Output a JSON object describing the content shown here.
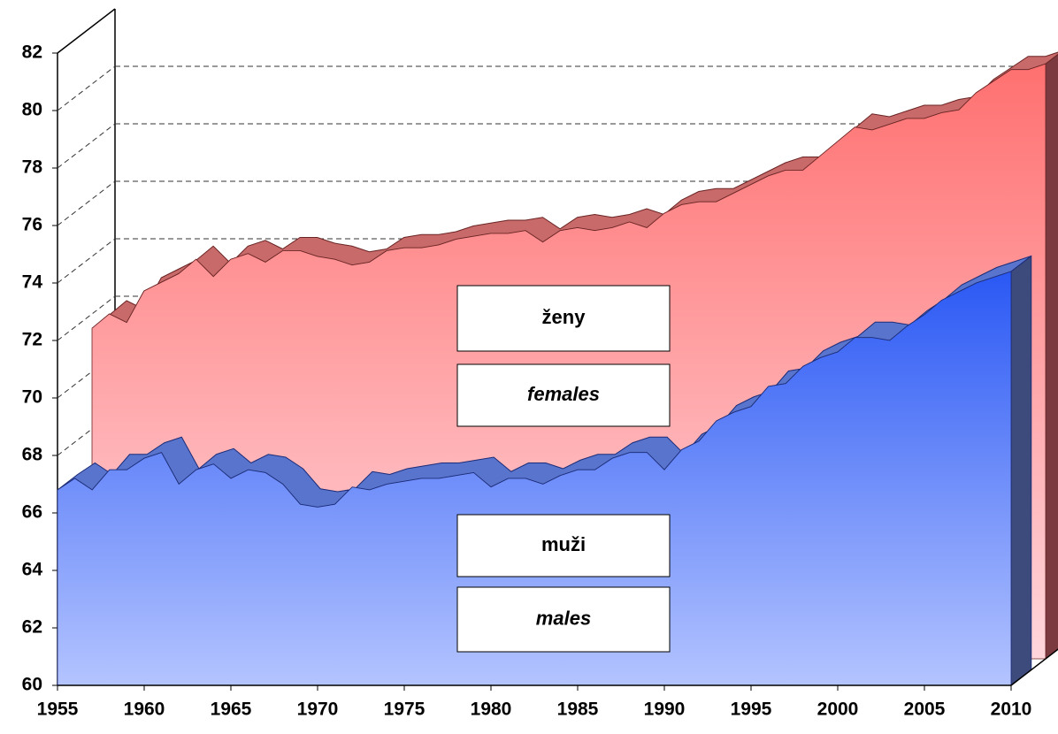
{
  "chart_data": {
    "type": "area3d",
    "x": [
      1955,
      1956,
      1957,
      1958,
      1959,
      1960,
      1961,
      1962,
      1963,
      1964,
      1965,
      1966,
      1967,
      1968,
      1969,
      1970,
      1971,
      1972,
      1973,
      1974,
      1975,
      1976,
      1977,
      1978,
      1979,
      1980,
      1981,
      1982,
      1983,
      1984,
      1985,
      1986,
      1987,
      1988,
      1989,
      1990,
      1991,
      1992,
      1993,
      1994,
      1995,
      1996,
      1997,
      1998,
      1999,
      2000,
      2001,
      2002,
      2003,
      2004,
      2005,
      2006,
      2007,
      2008,
      2009,
      2010
    ],
    "series": [
      {
        "name": "males",
        "color": "#3a64f0",
        "values": [
          66.8,
          67.2,
          66.8,
          67.5,
          67.5,
          67.9,
          68.1,
          67.0,
          67.5,
          67.7,
          67.2,
          67.5,
          67.4,
          67.0,
          66.3,
          66.2,
          66.3,
          66.9,
          66.8,
          67.0,
          67.1,
          67.2,
          67.2,
          67.3,
          67.4,
          66.9,
          67.2,
          67.2,
          67.0,
          67.3,
          67.5,
          67.5,
          67.9,
          68.1,
          68.1,
          67.5,
          68.2,
          68.5,
          69.2,
          69.5,
          69.7,
          70.4,
          70.5,
          71.1,
          71.4,
          71.6,
          72.1,
          72.1,
          72.0,
          72.5,
          72.9,
          73.4,
          73.7,
          74.0,
          74.2,
          74.4
        ]
      },
      {
        "name": "females",
        "color": "#ff7070",
        "values": [
          71.5,
          72.0,
          71.7,
          72.8,
          73.1,
          73.4,
          73.9,
          73.3,
          73.9,
          74.1,
          73.8,
          74.2,
          74.2,
          74.0,
          73.9,
          73.7,
          73.8,
          74.2,
          74.3,
          74.3,
          74.4,
          74.6,
          74.7,
          74.8,
          74.8,
          74.9,
          74.5,
          74.9,
          75.0,
          74.9,
          75.0,
          75.2,
          75.0,
          75.5,
          75.8,
          75.9,
          75.9,
          76.2,
          76.5,
          76.8,
          77.0,
          77.0,
          77.5,
          78.0,
          78.5,
          78.4,
          78.6,
          78.8,
          78.8,
          79.0,
          79.1,
          79.7,
          80.1,
          80.5,
          80.5,
          80.7
        ]
      }
    ],
    "annotations": [
      {
        "text": "ženy",
        "style": "normal"
      },
      {
        "text": "females",
        "style": "italic"
      },
      {
        "text": "muži",
        "style": "normal"
      },
      {
        "text": "males",
        "style": "italic"
      }
    ],
    "xlim": [
      1955,
      2010
    ],
    "xticks": [
      1955,
      1960,
      1965,
      1970,
      1975,
      1980,
      1985,
      1990,
      1995,
      2000,
      2005,
      2010
    ],
    "ylim": [
      60,
      82
    ],
    "yticks": [
      60,
      62,
      64,
      66,
      68,
      70,
      72,
      74,
      76,
      78,
      80,
      82
    ],
    "grid": true
  }
}
